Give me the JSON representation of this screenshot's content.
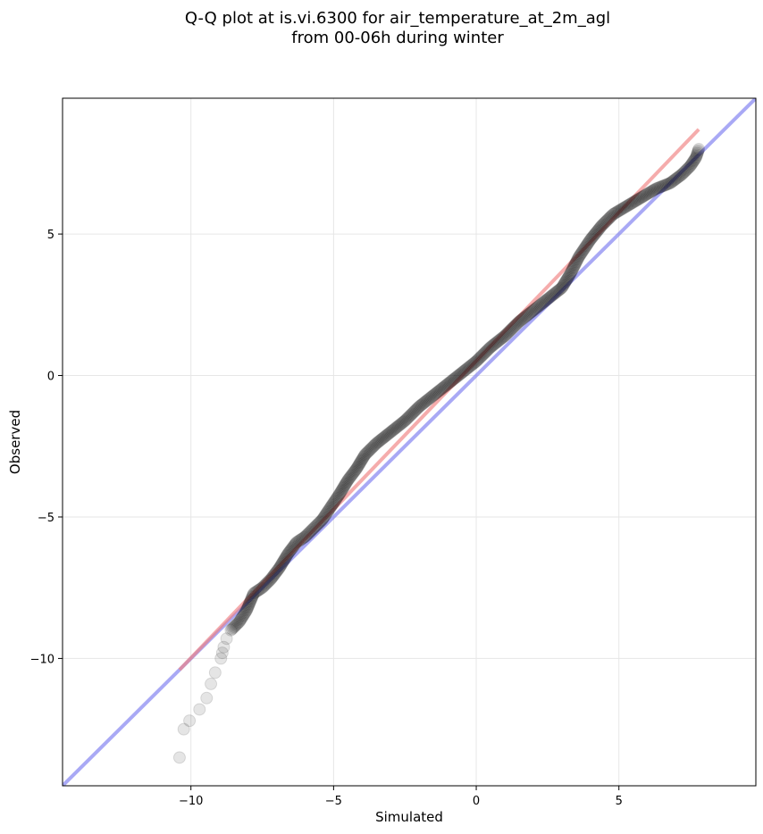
{
  "chart_data": {
    "type": "scatter",
    "title_line1": "Q-Q plot at is.vi.6300 for air_temperature_at_2m_agl",
    "title_line2": "from 00-06h during winter",
    "xlabel": "Simulated",
    "ylabel": "Observed",
    "xlim": [
      -14.5,
      9.8
    ],
    "ylim": [
      -14.5,
      9.8
    ],
    "xticks": [
      -10,
      -5,
      0,
      5
    ],
    "yticks": [
      -10,
      -5,
      0,
      5
    ],
    "xtick_labels": [
      "−10",
      "−5",
      "0",
      "5"
    ],
    "ytick_labels": [
      "−10",
      "−5",
      "0",
      "5"
    ],
    "grid": true,
    "colors": {
      "points": "#000000",
      "fit_line": "#f08080",
      "identity_line": "#7b7bef"
    },
    "identity_line": {
      "x": [
        -14.5,
        9.8
      ],
      "y": [
        -14.5,
        9.8
      ]
    },
    "fit_line": {
      "x": [
        -10.4,
        7.8
      ],
      "y": [
        -10.4,
        8.7
      ]
    },
    "quantile_curve": {
      "x": [
        -10.4,
        -10.25,
        -10.05,
        -9.7,
        -9.45,
        -9.3,
        -9.15,
        -8.95,
        -8.9,
        -8.85,
        -8.75,
        -8.6,
        -8.3,
        -8.05,
        -7.8,
        -7.5,
        -7.2,
        -6.9,
        -6.6,
        -6.3,
        -6.0,
        -5.7,
        -5.4,
        -5.2,
        -5.0,
        -4.8,
        -4.5,
        -4.2,
        -3.9,
        -3.5,
        -3.0,
        -2.5,
        -2.0,
        -1.5,
        -1.0,
        -0.5,
        0.0,
        0.5,
        1.0,
        1.5,
        2.0,
        2.5,
        3.0,
        3.3,
        3.6,
        4.0,
        4.4,
        4.8,
        5.3,
        5.8,
        6.3,
        6.8,
        7.2,
        7.5,
        7.7,
        7.8
      ],
      "y": [
        -13.5,
        -12.5,
        -12.2,
        -11.8,
        -11.4,
        -10.9,
        -10.5,
        -10.0,
        -9.8,
        -9.6,
        -9.3,
        -9.0,
        -8.7,
        -8.3,
        -7.7,
        -7.5,
        -7.2,
        -6.8,
        -6.3,
        -5.9,
        -5.7,
        -5.4,
        -5.1,
        -4.8,
        -4.5,
        -4.2,
        -3.7,
        -3.3,
        -2.8,
        -2.4,
        -2.0,
        -1.6,
        -1.1,
        -0.7,
        -0.3,
        0.1,
        0.5,
        1.0,
        1.4,
        1.9,
        2.3,
        2.7,
        3.1,
        3.6,
        4.2,
        4.8,
        5.3,
        5.7,
        6.0,
        6.3,
        6.6,
        6.8,
        7.1,
        7.4,
        7.7,
        8.0
      ]
    }
  }
}
